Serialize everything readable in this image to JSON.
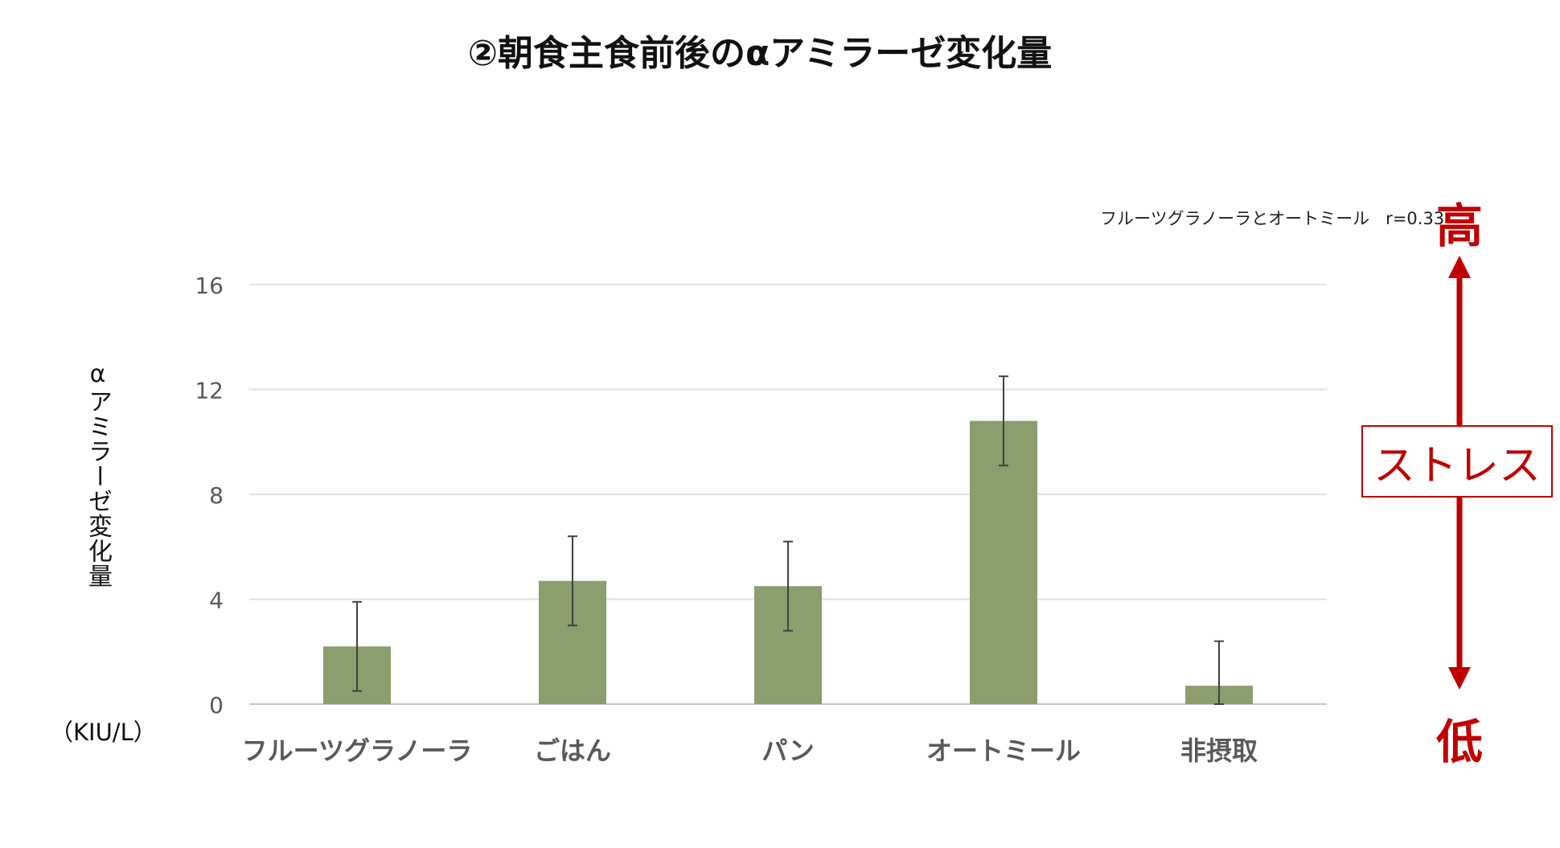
{
  "title": "②朝食主食前後のαアミラーゼ変化量",
  "note": "フルーツグラノーラとオートミール   r=0.33",
  "y_axis_label": "αアミラーゼ変化量",
  "unit": "（KIU/L）",
  "stress": {
    "high": "高",
    "low": "低",
    "label": "ストレス",
    "color": "#c00000"
  },
  "chart_data": {
    "type": "bar",
    "categories": [
      "フルーツグラノーラ",
      "ごはん",
      "パン",
      "オートミール",
      "非摂取"
    ],
    "values": [
      2.2,
      4.7,
      4.5,
      10.8,
      0.7
    ],
    "error_bars": [
      1.7,
      1.7,
      1.7,
      1.7,
      1.7
    ],
    "yticks": [
      "0",
      "4",
      "8",
      "12",
      "16"
    ],
    "ylim": [
      0,
      16
    ],
    "grid": true,
    "bar_color": "#8a9e6e",
    "title": "②朝食主食前後のαアミラーゼ変化量",
    "ylabel": "αアミラーゼ変化量"
  }
}
